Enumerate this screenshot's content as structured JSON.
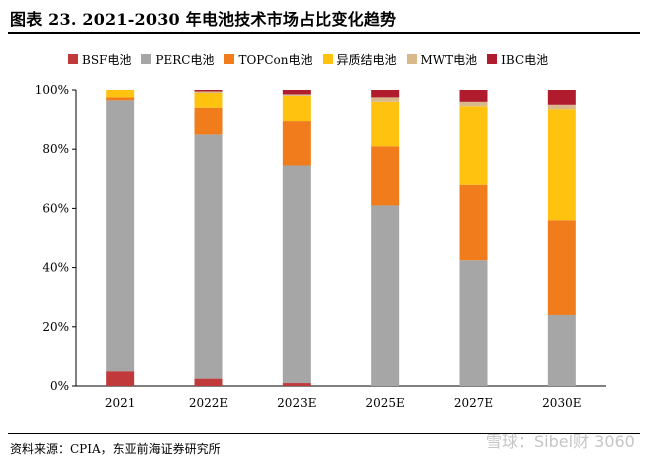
{
  "title": "图表 23. 2021-2030 年电池技术市场占比变化趋势",
  "source": "资料来源：CPIA，东亚前海证券研究所",
  "watermark": "雪球：Sibel财 3060",
  "chart_data": {
    "type": "bar",
    "stacked": true,
    "categories": [
      "2021",
      "2022E",
      "2023E",
      "2025E",
      "2027E",
      "2030E"
    ],
    "ylim": [
      0,
      100
    ],
    "yticks": [
      0,
      20,
      40,
      60,
      80,
      100
    ],
    "ytick_labels": [
      "0%",
      "20%",
      "40%",
      "60%",
      "80%",
      "100%"
    ],
    "legend_position": "top",
    "grid": false,
    "series": [
      {
        "name": "BSF电池",
        "color": "#c0393b",
        "values": [
          5,
          2.5,
          1,
          0,
          0,
          0
        ]
      },
      {
        "name": "PERC电池",
        "color": "#a6a6a6",
        "values": [
          91.5,
          82.5,
          73.5,
          61,
          42.5,
          24
        ]
      },
      {
        "name": "TOPCon电池",
        "color": "#f07c1b",
        "values": [
          1,
          9,
          15,
          20,
          25.5,
          32
        ]
      },
      {
        "name": "异质结电池",
        "color": "#ffc30f",
        "values": [
          2.5,
          5,
          8.5,
          15,
          26.5,
          37.5
        ]
      },
      {
        "name": "MWT电池",
        "color": "#d9b98c",
        "values": [
          0,
          0.5,
          0.5,
          1.5,
          1.5,
          1.5
        ]
      },
      {
        "name": "IBC电池",
        "color": "#b01c2e",
        "values": [
          0,
          0.5,
          1.5,
          2.5,
          4,
          5
        ]
      }
    ]
  }
}
